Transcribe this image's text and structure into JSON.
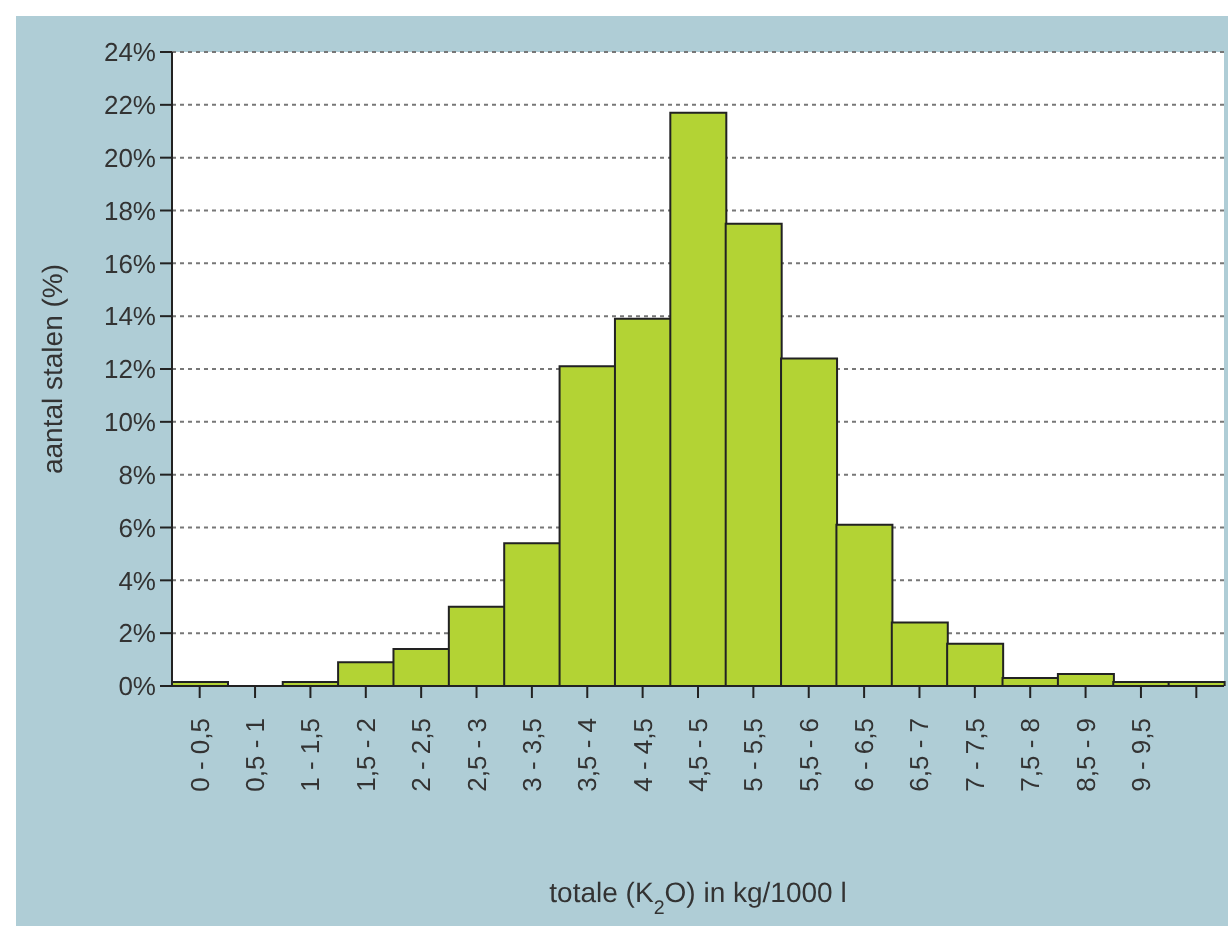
{
  "chart_data": {
    "type": "bar",
    "xlabel": "totale (K$_{2}$O) in kg/1000 l",
    "ylabel": "aantal stalen (%)",
    "categories": [
      "0 - 0,5",
      "0,5 - 1",
      "1 - 1,5",
      "1,5 - 2",
      "2 - 2,5",
      "2,5 - 3",
      "3 - 3,5",
      "3,5 - 4",
      "4 - 4,5",
      "4,5 - 5",
      "5 - 5,5",
      "5,5 - 6",
      "6 - 6,5",
      "6,5 - 7",
      "7 - 7,5",
      "7,5 - 8",
      "8,5 - 9",
      "9 - 9,5",
      null
    ],
    "values": [
      0.15,
      0,
      0.15,
      0.9,
      1.4,
      3.0,
      5.4,
      12.1,
      13.9,
      21.7,
      17.5,
      12.4,
      6.1,
      2.4,
      1.6,
      0.3,
      0.45,
      0.15,
      0.15
    ],
    "color": "#b3d334",
    "ylim": [
      0,
      24
    ],
    "yticks": [
      {
        "value": 0,
        "label": "0%"
      },
      {
        "value": 2,
        "label": "2%"
      },
      {
        "value": 4,
        "label": "4%"
      },
      {
        "value": 6,
        "label": "6%"
      },
      {
        "value": 8,
        "label": "8%"
      },
      {
        "value": 10,
        "label": "10%"
      },
      {
        "value": 12,
        "label": "12%"
      },
      {
        "value": 14,
        "label": "14%"
      },
      {
        "value": 16,
        "label": "16%"
      },
      {
        "value": 18,
        "label": "18%"
      },
      {
        "value": 20,
        "label": "20%"
      },
      {
        "value": 22,
        "label": "22%"
      },
      {
        "value": 24,
        "label": "24%"
      }
    ],
    "grid": "y",
    "legend": false
  }
}
